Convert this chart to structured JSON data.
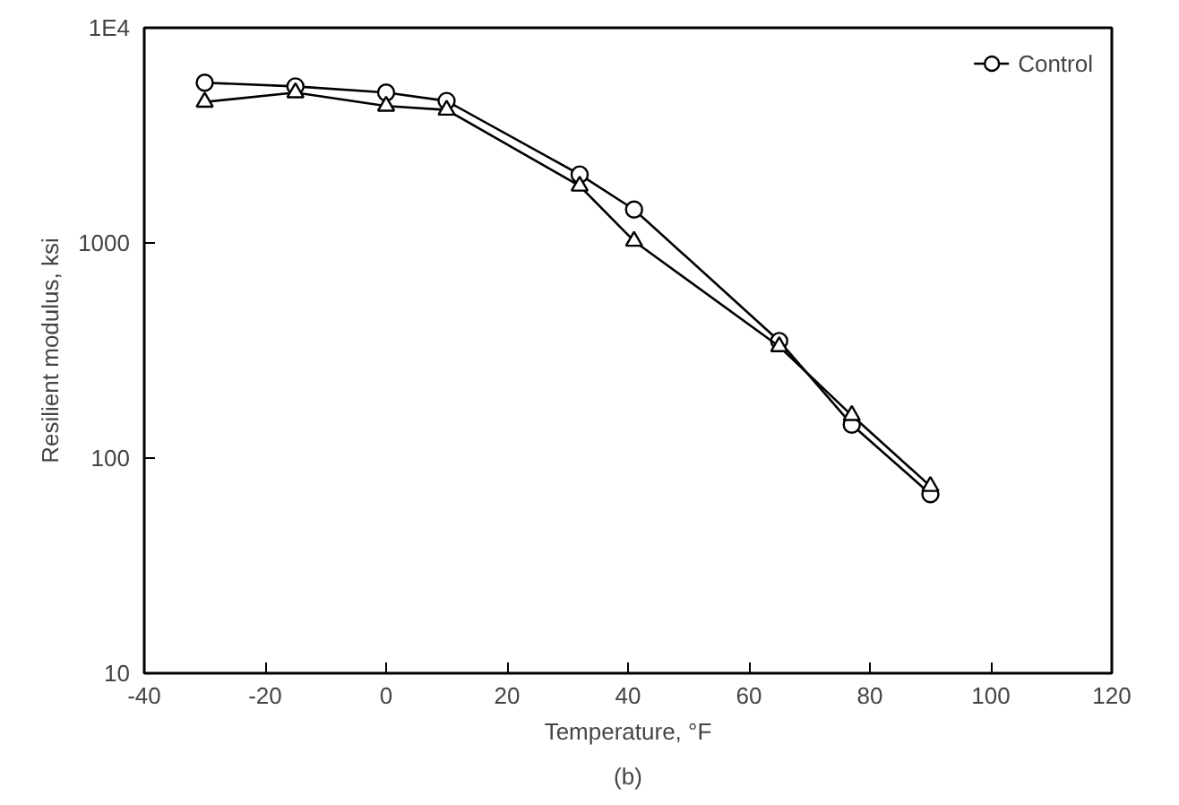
{
  "chart_data": {
    "type": "line",
    "xlabel": "Temperature, °F",
    "ylabel": "Resilient modulus, ksi",
    "annotations": [
      "(b)"
    ],
    "log": "y",
    "xlim": [
      -40,
      120
    ],
    "xticks": [
      -40,
      -20,
      0,
      20,
      40,
      60,
      80,
      100,
      120
    ],
    "ylim": [
      10,
      10000
    ],
    "yticks": [
      10,
      100,
      1000,
      {
        "value": 10000,
        "label": "1E4"
      }
    ],
    "grid": false,
    "legend": "top right",
    "line_style": "solid",
    "x": [
      -30,
      -15,
      0,
      10,
      32,
      41,
      65,
      77,
      90
    ],
    "series": [
      {
        "name": "Control",
        "color": "#000000",
        "marker": "circle",
        "values": [
          5560,
          5340,
          5000,
          4570,
          2080,
          1430,
          350,
          143,
          68
        ]
      },
      {
        "color": "#000000",
        "marker": "triangle",
        "values": [
          4520,
          5000,
          4330,
          4150,
          1840,
          1020,
          330,
          158,
          74
        ]
      }
    ]
  }
}
